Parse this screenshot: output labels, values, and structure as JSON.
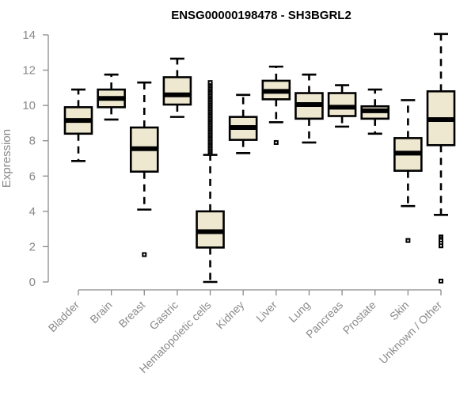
{
  "chart_data": {
    "type": "box",
    "title": "ENSG00000198478 - SH3BGRL2",
    "xlabel": "",
    "ylabel": "Expression",
    "ylim": [
      0,
      14
    ],
    "yticks": [
      0,
      2,
      4,
      6,
      8,
      10,
      12,
      14
    ],
    "grid": false,
    "colors": {
      "box_fill": "#EEE8D0",
      "box_stroke": "#000000",
      "axis": "#8a8a8a"
    },
    "categories": [
      "Bladder",
      "Brain",
      "Breast",
      "Gastric",
      "Hematopoietic cells",
      "Kidney",
      "Liver",
      "Lung",
      "Pancreas",
      "Prostate",
      "Skin",
      "Unknown / Other"
    ],
    "boxes": [
      {
        "name": "Bladder",
        "whisker_low": 6.85,
        "q1": 8.4,
        "median": 9.15,
        "q3": 9.9,
        "whisker_high": 10.9,
        "outliers": []
      },
      {
        "name": "Brain",
        "whisker_low": 9.2,
        "q1": 9.9,
        "median": 10.4,
        "q3": 10.9,
        "whisker_high": 11.75,
        "outliers": []
      },
      {
        "name": "Breast",
        "whisker_low": 4.1,
        "q1": 6.25,
        "median": 7.55,
        "q3": 8.75,
        "whisker_high": 11.3,
        "outliers": [
          1.55
        ]
      },
      {
        "name": "Gastric",
        "whisker_low": 9.35,
        "q1": 10.05,
        "median": 10.6,
        "q3": 11.6,
        "whisker_high": 12.65,
        "outliers": []
      },
      {
        "name": "Hematopoietic cells",
        "whisker_low": 0.0,
        "q1": 1.95,
        "median": 2.85,
        "q3": 4.0,
        "whisker_high": 7.2,
        "outliers": [
          7.3,
          7.4,
          7.5,
          7.6,
          7.7,
          7.8,
          7.9,
          8.0,
          8.1,
          8.2,
          8.3,
          8.4,
          8.5,
          8.6,
          8.7,
          8.8,
          8.9,
          9.0,
          9.1,
          9.2,
          9.3,
          9.4,
          9.5,
          9.6,
          9.7,
          9.8,
          9.9,
          10.0,
          10.1,
          10.2,
          10.3,
          10.4,
          10.5,
          10.6,
          10.7,
          10.8,
          10.9,
          11.0,
          11.1,
          11.2,
          11.3
        ]
      },
      {
        "name": "Kidney",
        "whisker_low": 7.3,
        "q1": 8.05,
        "median": 8.75,
        "q3": 9.35,
        "whisker_high": 10.6,
        "outliers": []
      },
      {
        "name": "Liver",
        "whisker_low": 9.05,
        "q1": 10.35,
        "median": 10.8,
        "q3": 11.4,
        "whisker_high": 12.2,
        "outliers": [
          7.9
        ]
      },
      {
        "name": "Lung",
        "whisker_low": 7.9,
        "q1": 9.25,
        "median": 10.05,
        "q3": 10.7,
        "whisker_high": 11.75,
        "outliers": []
      },
      {
        "name": "Pancreas",
        "whisker_low": 8.8,
        "q1": 9.4,
        "median": 9.9,
        "q3": 10.7,
        "whisker_high": 11.15,
        "outliers": []
      },
      {
        "name": "Prostate",
        "whisker_low": 8.4,
        "q1": 9.25,
        "median": 9.7,
        "q3": 9.95,
        "whisker_high": 10.9,
        "outliers": []
      },
      {
        "name": "Skin",
        "whisker_low": 4.3,
        "q1": 6.3,
        "median": 7.3,
        "q3": 8.15,
        "whisker_high": 10.3,
        "outliers": [
          2.35
        ]
      },
      {
        "name": "Unknown / Other",
        "whisker_low": 3.8,
        "q1": 7.75,
        "median": 9.2,
        "q3": 10.8,
        "whisker_high": 14.05,
        "outliers": [
          2.55,
          2.45,
          2.35,
          2.2,
          2.05,
          0.05
        ]
      }
    ]
  }
}
